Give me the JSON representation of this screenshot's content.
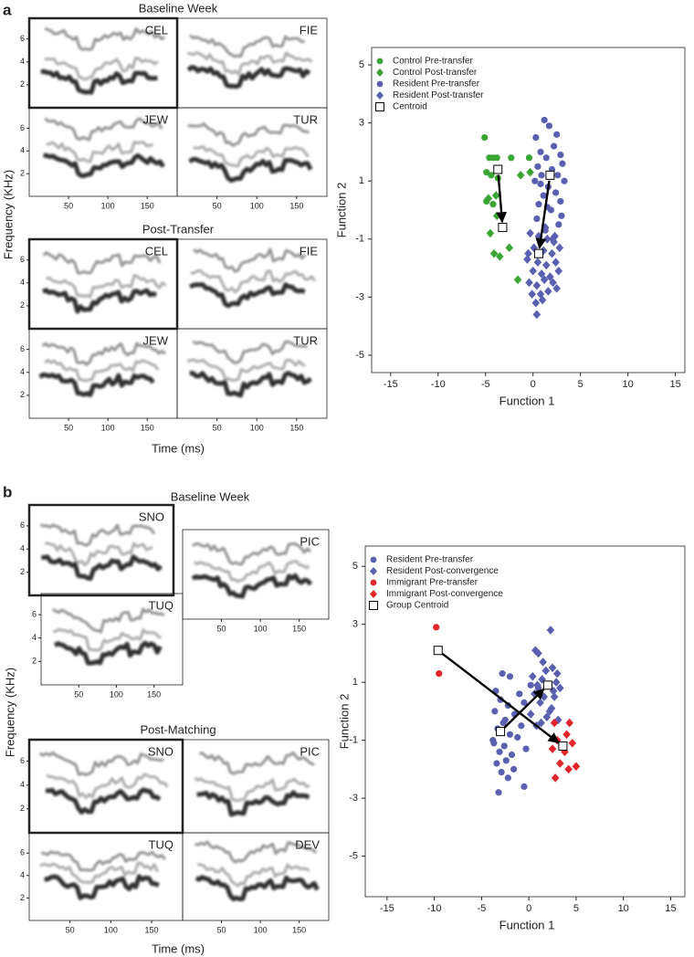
{
  "panel_labels": [
    "a",
    "b"
  ],
  "spectrogram_axes": {
    "xlim": [
      0,
      188
    ],
    "ylim": [
      0,
      7.8
    ],
    "xticks": [
      50,
      100,
      150
    ],
    "yticks": [
      2,
      4,
      6
    ]
  },
  "panels": [
    {
      "y_label": "Frequency (KHz)",
      "x_label": "Time (ms)",
      "groups": [
        {
          "title": "Baseline Week",
          "tiles": [
            "CEL",
            "FIE",
            "JEW",
            "TUR"
          ]
        },
        {
          "title": "Post-Transfer",
          "tiles": [
            "CEL",
            "FIE",
            "JEW",
            "TUR"
          ]
        }
      ]
    },
    {
      "y_label": "Frequency (KHz)",
      "x_label": "Time (ms)",
      "groups": [
        {
          "title": "Baseline Week",
          "tiles": [
            "SNO",
            "PIC",
            "TUQ"
          ]
        },
        {
          "title": "Post-Matching",
          "tiles": [
            "SNO",
            "PIC",
            "TUQ",
            "DEV"
          ]
        }
      ]
    }
  ],
  "chart_data": [
    {
      "type": "scatter",
      "x_label": "Function 1",
      "y_label": "Function 2",
      "xlim": [
        -17,
        16
      ],
      "ylim": [
        -5.6,
        5.6
      ],
      "xticks": [
        -15,
        -10,
        -5,
        0,
        5,
        10,
        15
      ],
      "yticks": [
        5,
        3,
        1,
        -1,
        -3,
        -5
      ],
      "legend": "upper left",
      "series": [
        {
          "name": "Control Pre-transfer",
          "color": "#3aa535",
          "marker": "circle",
          "x": [
            -5.1,
            -4.6,
            -4.2,
            -3.8,
            -2.3,
            -4.9,
            -4.4,
            -3.7,
            -0.4,
            -4.9,
            -4.2
          ],
          "values": [
            2.5,
            1.8,
            1.8,
            1.8,
            1.8,
            1.3,
            1.2,
            1.1,
            1.8,
            0.3,
            0.2
          ]
        },
        {
          "name": "Control Post-transfer",
          "color": "#3aa535",
          "marker": "diamond",
          "x": [
            -1.3,
            -0.3,
            -3.9,
            -3.8,
            -4.5,
            -2.5,
            -3.5,
            -4.1,
            -1.6,
            -4.7
          ],
          "values": [
            1.2,
            1.3,
            0.5,
            -0.2,
            -0.8,
            -1.3,
            -1.6,
            -1.5,
            -2.4,
            0.4
          ]
        },
        {
          "name": "Resident Pre-transfer",
          "color": "#5b5fb0",
          "marker": "circle",
          "x": [
            1.2,
            1.7,
            0.3,
            2.5,
            2.2,
            0.8,
            2.9,
            1.4,
            0.5,
            3.1,
            2.0,
            0.9,
            2.6,
            0.2,
            1.6,
            3.3,
            2.4,
            1.1,
            0.6,
            2.9,
            1.9,
            0.4,
            2.7,
            1.3,
            3.0,
            0.8,
            2.1,
            1.5
          ],
          "values": [
            3.1,
            2.9,
            2.5,
            2.6,
            2.2,
            2.0,
            1.9,
            1.8,
            1.5,
            1.6,
            1.4,
            1.2,
            1.2,
            1.0,
            0.8,
            1.0,
            0.6,
            0.5,
            0.2,
            0.3,
            0.0,
            -0.3,
            -0.5,
            -0.7,
            -0.2,
            0.9,
            -1.0,
            0.1
          ]
        },
        {
          "name": "Resident Post-transfer",
          "color": "#5b5fb0",
          "marker": "diamond",
          "x": [
            -0.3,
            0.6,
            1.5,
            2.3,
            0.1,
            1.1,
            2.0,
            2.8,
            -0.6,
            0.5,
            1.4,
            2.4,
            0.0,
            0.9,
            1.8,
            2.7,
            -0.4,
            0.4,
            1.2,
            2.1,
            -0.1,
            0.8,
            1.6,
            2.5,
            0.3,
            1.0,
            2.2,
            -0.5,
            1.3,
            0.4
          ],
          "values": [
            -0.8,
            -0.9,
            -1.0,
            -0.9,
            -1.3,
            -1.4,
            -1.5,
            -1.3,
            -1.7,
            -1.8,
            -1.9,
            -1.8,
            -2.1,
            -2.2,
            -2.3,
            -2.1,
            -2.5,
            -2.6,
            -2.4,
            -2.5,
            -2.9,
            -2.9,
            -2.8,
            -2.7,
            -3.2,
            -3.1,
            -1.1,
            -1.5,
            -0.6,
            -3.6
          ]
        },
        {
          "name": "Centroid",
          "color": "#ffffff",
          "marker": "square",
          "x": [
            -3.7,
            -3.2,
            1.8,
            0.6
          ],
          "values": [
            1.4,
            -0.6,
            1.2,
            -1.5
          ]
        }
      ]
    },
    {
      "type": "scatter",
      "x_label": "Function 1",
      "y_label": "Function 2",
      "xlim": [
        -17.3,
        16.5
      ],
      "ylim": [
        -6.4,
        5.7
      ],
      "xticks": [
        -15,
        -10,
        -5,
        0,
        5,
        10,
        15
      ],
      "yticks": [
        5,
        3,
        1,
        -1,
        -3,
        -5
      ],
      "legend": "upper left",
      "series": [
        {
          "name": "Resident Pre-transfer",
          "color": "#5b5fb0",
          "marker": "circle",
          "x": [
            -2.8,
            -2.0,
            -3.5,
            -1.0,
            -3.0,
            -2.2,
            -0.5,
            -3.6,
            -1.5,
            -2.5,
            -0.8,
            -3.3,
            -2.0,
            -1.2,
            -3.8,
            -2.6,
            -0.3,
            -3.1,
            -1.8,
            -2.4,
            -3.4,
            -1.6,
            -2.9,
            0.2,
            -2.2,
            -0.5,
            -3.2,
            -2.7,
            1.0,
            -3.7
          ],
          "values": [
            1.3,
            1.2,
            0.7,
            0.6,
            0.4,
            0.2,
            0.3,
            0.0,
            -0.1,
            -0.3,
            -0.5,
            -0.6,
            -0.8,
            -0.9,
            -1.0,
            -1.2,
            -1.3,
            -1.4,
            -1.5,
            -1.7,
            -1.8,
            -2.0,
            -2.1,
            0.9,
            -2.3,
            -2.6,
            -2.8,
            -0.4,
            0.8,
            -1.1
          ]
        },
        {
          "name": "Resident Post-convergence",
          "color": "#5b5fb0",
          "marker": "diamond",
          "x": [
            2.3,
            0.7,
            1.0,
            2.5,
            1.8,
            3.0,
            0.4,
            1.4,
            2.9,
            0.9,
            2.1,
            3.3,
            0.6,
            1.6,
            2.7,
            1.2,
            2.4,
            0.2,
            1.9,
            3.1,
            0.8,
            2.2,
            1.5,
            2.6,
            1.3
          ],
          "values": [
            2.8,
            2.1,
            2.0,
            1.5,
            1.4,
            1.3,
            1.2,
            1.1,
            1.0,
            0.9,
            0.9,
            0.8,
            0.6,
            0.5,
            0.5,
            0.3,
            0.1,
            -0.1,
            -0.2,
            -0.3,
            -0.5,
            0.0,
            1.7,
            0.7,
            -0.4
          ]
        },
        {
          "name": "Immigrant Pre-transfer",
          "color": "#e0262b",
          "marker": "circle",
          "x": [
            -9.8,
            -9.5
          ],
          "values": [
            2.9,
            1.3
          ]
        },
        {
          "name": "Immigrant Post-convergence",
          "color": "#e0262b",
          "marker": "diamond",
          "x": [
            2.7,
            4.3,
            4.0,
            3.0,
            4.6,
            2.5,
            3.8,
            5.0,
            3.3,
            2.8,
            4.2
          ],
          "values": [
            -0.4,
            -0.4,
            -0.8,
            -1.0,
            -1.1,
            -1.3,
            -1.4,
            -1.9,
            -1.8,
            -2.3,
            -2.0
          ]
        },
        {
          "name": "Group Centroid",
          "color": "#ffffff",
          "marker": "square",
          "x": [
            -3.0,
            2.0,
            -9.6,
            3.6
          ],
          "values": [
            -0.7,
            0.9,
            2.1,
            -1.2
          ]
        }
      ]
    }
  ]
}
